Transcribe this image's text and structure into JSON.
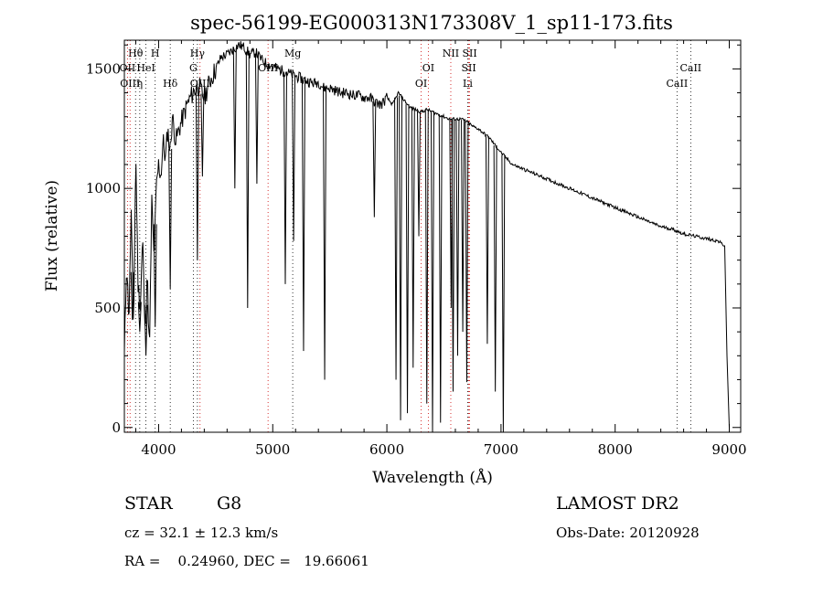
{
  "chart_data": {
    "type": "line",
    "title": "spec-56199-EG000313N173308V_1_sp11-173.fits",
    "xlabel": "Wavelength (Å)",
    "ylabel": "Flux (relative)",
    "xlim": [
      3700,
      9100
    ],
    "ylim": [
      -20,
      1620
    ],
    "x_ticks": [
      4000,
      5000,
      6000,
      7000,
      8000,
      9000
    ],
    "y_ticks": [
      0,
      500,
      1000,
      1500
    ],
    "grid": false,
    "series": [
      {
        "x": [
          3700,
          3720,
          3740,
          3760,
          3780,
          3800,
          3820,
          3840,
          3860,
          3880,
          3900,
          3920,
          3940,
          3960,
          3980,
          4000,
          4020,
          4040,
          4060,
          4080,
          4100,
          4120,
          4150,
          4200,
          4250,
          4300,
          4350,
          4400,
          4450,
          4500,
          4550,
          4600,
          4650,
          4700,
          4750,
          4800,
          4850,
          4900,
          4950,
          5000,
          5050,
          5100,
          5150,
          5200,
          5250,
          5300,
          5350,
          5400,
          5450,
          5500,
          5550,
          5600,
          5650,
          5700,
          5750,
          5800,
          5850,
          5900,
          5950,
          6000,
          6050,
          6100,
          6150,
          6200,
          6250,
          6300,
          6350,
          6400,
          6450,
          6500,
          6550,
          6600,
          6650,
          6700,
          6750,
          6800,
          6850,
          6900,
          6950,
          7000,
          7100,
          7200,
          7300,
          7400,
          7500,
          7600,
          7700,
          7800,
          7900,
          8000,
          8100,
          8200,
          8300,
          8400,
          8500,
          8600,
          8700,
          8800,
          8900,
          8960,
          8980,
          9000
        ],
        "y": [
          300,
          700,
          450,
          900,
          400,
          1150,
          600,
          500,
          800,
          400,
          650,
          300,
          950,
          700,
          1000,
          1100,
          1050,
          1200,
          1120,
          1250,
          1150,
          1300,
          1200,
          1280,
          1350,
          1400,
          1430,
          1380,
          1450,
          1500,
          1550,
          1560,
          1580,
          1600,
          1590,
          1560,
          1570,
          1540,
          1520,
          1510,
          1500,
          1490,
          1480,
          1470,
          1460,
          1450,
          1440,
          1445,
          1420,
          1420,
          1410,
          1400,
          1400,
          1390,
          1390,
          1380,
          1380,
          1360,
          1350,
          1380,
          1350,
          1400,
          1370,
          1340,
          1330,
          1320,
          1330,
          1320,
          1310,
          1300,
          1290,
          1290,
          1290,
          1280,
          1260,
          1250,
          1230,
          1210,
          1180,
          1150,
          1100,
          1080,
          1060,
          1040,
          1020,
          1000,
          980,
          960,
          940,
          920,
          900,
          880,
          860,
          840,
          830,
          810,
          800,
          790,
          780,
          760,
          300,
          0
        ]
      }
    ],
    "absorption_lines": [
      {
        "x": 3770,
        "y": 450
      },
      {
        "x": 3835,
        "y": 400
      },
      {
        "x": 3889,
        "y": 300
      },
      {
        "x": 3970,
        "y": 420
      },
      {
        "x": 4102,
        "y": 580
      },
      {
        "x": 4340,
        "y": 700
      },
      {
        "x": 4384,
        "y": 1050
      },
      {
        "x": 4668,
        "y": 1000
      },
      {
        "x": 4780,
        "y": 500
      },
      {
        "x": 4861,
        "y": 1020
      },
      {
        "x": 5110,
        "y": 600
      },
      {
        "x": 5183,
        "y": 780
      },
      {
        "x": 5270,
        "y": 320
      },
      {
        "x": 5455,
        "y": 200
      },
      {
        "x": 5890,
        "y": 880
      },
      {
        "x": 6080,
        "y": 200
      },
      {
        "x": 6120,
        "y": 30
      },
      {
        "x": 6180,
        "y": 60
      },
      {
        "x": 6230,
        "y": 250
      },
      {
        "x": 6280,
        "y": 800
      },
      {
        "x": 6350,
        "y": 100
      },
      {
        "x": 6400,
        "y": -20
      },
      {
        "x": 6470,
        "y": 20
      },
      {
        "x": 6563,
        "y": 500
      },
      {
        "x": 6580,
        "y": 150
      },
      {
        "x": 6620,
        "y": 300
      },
      {
        "x": 6665,
        "y": 400
      },
      {
        "x": 6700,
        "y": 190
      },
      {
        "x": 6880,
        "y": 350
      },
      {
        "x": 6950,
        "y": 150
      },
      {
        "x": 7020,
        "y": -20
      }
    ],
    "line_markers": [
      {
        "label": "Hθ",
        "x": 3798,
        "row": 0,
        "color": "#000000"
      },
      {
        "label": "H",
        "x": 3970,
        "row": 0,
        "color": "#000000"
      },
      {
        "label": "Hγ",
        "x": 4340,
        "row": 0,
        "color": "#000000"
      },
      {
        "label": "Mg",
        "x": 5175,
        "row": 0,
        "color": "#000000"
      },
      {
        "label": "NII",
        "x": 6560,
        "row": 0,
        "color": "#cc0000"
      },
      {
        "label": "SII",
        "x": 6725,
        "row": 0,
        "color": "#cc0000"
      },
      {
        "label": "OII",
        "x": 3727,
        "row": 1,
        "color": "#cc0000"
      },
      {
        "label": "HeI",
        "x": 3889,
        "row": 1,
        "color": "#000000"
      },
      {
        "label": "G",
        "x": 4304,
        "row": 1,
        "color": "#000000"
      },
      {
        "label": "OIII",
        "x": 4959,
        "row": 1,
        "color": "#cc0000"
      },
      {
        "label": "OI",
        "x": 6363,
        "row": 1,
        "color": "#cc0000"
      },
      {
        "label": "SII",
        "x": 6717,
        "row": 1,
        "color": "#cc0000"
      },
      {
        "label": "CaII",
        "x": 8662,
        "row": 1,
        "color": "#000000"
      },
      {
        "label": "OIII",
        "x": 3750,
        "row": 2,
        "color": "#cc0000"
      },
      {
        "label": "η",
        "x": 3835,
        "row": 2,
        "color": "#000000"
      },
      {
        "label": "Hδ",
        "x": 4102,
        "row": 2,
        "color": "#000000"
      },
      {
        "label": "OIII",
        "x": 4363,
        "row": 2,
        "color": "#cc0000"
      },
      {
        "label": "OI",
        "x": 6300,
        "row": 2,
        "color": "#cc0000"
      },
      {
        "label": "Li",
        "x": 6708,
        "row": 2,
        "color": "#000000"
      },
      {
        "label": "CaII",
        "x": 8542,
        "row": 2,
        "color": "#000000"
      }
    ]
  },
  "info": {
    "class": "STAR",
    "subclass": "G8",
    "survey": "LAMOST DR2",
    "cz": "cz = 32.1 ± 12.3 km/s",
    "obs_date": "Obs-Date: 20120928",
    "coords": "RA =    0.24960, DEC =   19.66061"
  }
}
